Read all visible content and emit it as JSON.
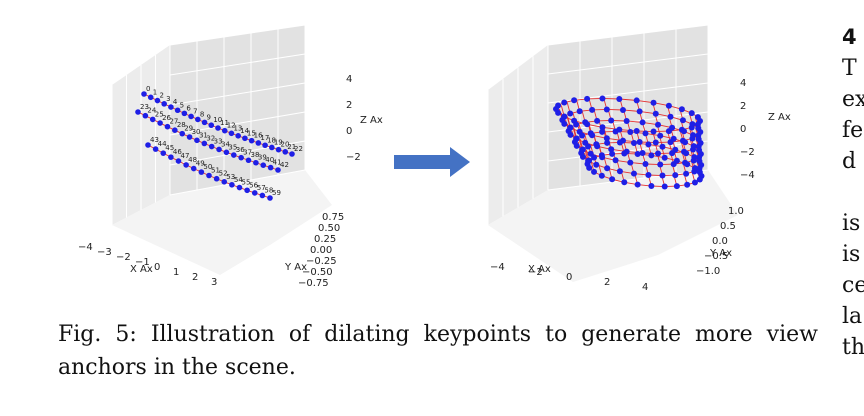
{
  "caption": {
    "text": "Fig. 5: Illustration of dilating keypoints to generate more view anchors in the scene."
  },
  "right_column": {
    "heading": "4",
    "lines": [
      "T",
      "ex",
      "fe",
      "d",
      "",
      "is",
      "is",
      "ce",
      "la",
      "th"
    ]
  },
  "arrow": {
    "color": "#4472c4"
  },
  "plots": [
    {
      "id": "sparse",
      "x_label": "X Ax",
      "y_label": "Y Ax",
      "z_label": "Z Ax",
      "x_ticks": [
        "−4",
        "−3",
        "−2",
        "−1",
        "0",
        "1",
        "2",
        "3"
      ],
      "y_ticks": [
        "0.75",
        "0.50",
        "0.25",
        "0.00",
        "−0.25",
        "−0.50",
        "−0.75"
      ],
      "z_ticks": [
        "4",
        "2",
        "0",
        "−2"
      ],
      "keypoint_labels": [
        "0",
        "1",
        "2",
        "3",
        "4",
        "5",
        "6",
        "7",
        "8",
        "9",
        "10",
        "11",
        "12",
        "13",
        "14",
        "15",
        "16",
        "17",
        "18",
        "19",
        "20",
        "21",
        "22",
        "23",
        "24",
        "25",
        "26",
        "27",
        "28",
        "29",
        "30",
        "31",
        "32",
        "33",
        "34",
        "35",
        "36",
        "37",
        "38",
        "39",
        "40",
        "41",
        "42",
        "43",
        "44",
        "45",
        "46",
        "47",
        "48",
        "49",
        "50",
        "51",
        "52",
        "53",
        "54",
        "55",
        "56",
        "57",
        "58",
        "59"
      ]
    },
    {
      "id": "dense",
      "x_label": "X Ax",
      "y_label": "Y Ax",
      "z_label": "Z Ax",
      "x_ticks": [
        "−4",
        "−2",
        "0",
        "2",
        "4"
      ],
      "y_ticks": [
        "1.0",
        "0.5",
        "0.0",
        "−0.5",
        "−1.0"
      ],
      "z_ticks": [
        "4",
        "2",
        "0",
        "−2",
        "−4"
      ]
    }
  ]
}
